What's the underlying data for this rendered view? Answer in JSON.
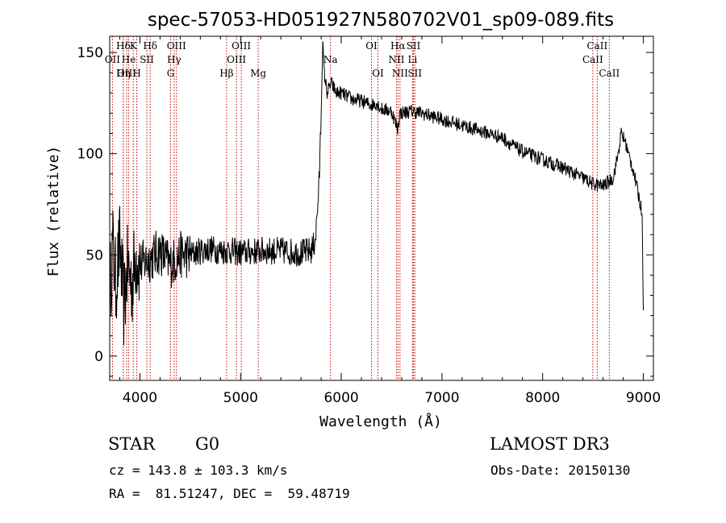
{
  "chart_data": {
    "type": "line",
    "title": "spec-57053-HD051927N580702V01_sp09-089.fits",
    "xlabel": "Wavelength (Å)",
    "ylabel": "Flux (relative)",
    "xlim": [
      3700,
      9100
    ],
    "ylim": [
      -12,
      158
    ],
    "xticks": [
      4000,
      5000,
      6000,
      7000,
      8000,
      9000
    ],
    "yticks": [
      0,
      50,
      100,
      150
    ],
    "grid": false,
    "line_color": "#000000",
    "marker_color": "#cc0000",
    "spectrum_anchors": [
      [
        3700,
        30
      ],
      [
        3730,
        55
      ],
      [
        3760,
        35
      ],
      [
        3800,
        55
      ],
      [
        3840,
        25
      ],
      [
        3880,
        45
      ],
      [
        3920,
        35
      ],
      [
        3960,
        50
      ],
      [
        4000,
        45
      ],
      [
        4100,
        48
      ],
      [
        4200,
        52
      ],
      [
        4300,
        45
      ],
      [
        4400,
        50
      ],
      [
        4500,
        50
      ],
      [
        4600,
        52
      ],
      [
        4700,
        53
      ],
      [
        4800,
        52
      ],
      [
        4900,
        52
      ],
      [
        5000,
        51
      ],
      [
        5200,
        52
      ],
      [
        5400,
        52
      ],
      [
        5600,
        51
      ],
      [
        5700,
        52
      ],
      [
        5730,
        55
      ],
      [
        5750,
        62
      ],
      [
        5780,
        85
      ],
      [
        5800,
        120
      ],
      [
        5815,
        155
      ],
      [
        5830,
        140
      ],
      [
        5860,
        130
      ],
      [
        5900,
        135
      ],
      [
        5950,
        130
      ],
      [
        6000,
        130
      ],
      [
        6100,
        127
      ],
      [
        6200,
        126
      ],
      [
        6300,
        124
      ],
      [
        6350,
        125
      ],
      [
        6400,
        122
      ],
      [
        6500,
        121
      ],
      [
        6560,
        112
      ],
      [
        6580,
        120
      ],
      [
        6700,
        121
      ],
      [
        6800,
        120
      ],
      [
        7000,
        117
      ],
      [
        7200,
        114
      ],
      [
        7400,
        111
      ],
      [
        7600,
        108
      ],
      [
        7700,
        104
      ],
      [
        7800,
        101
      ],
      [
        8000,
        97
      ],
      [
        8200,
        93
      ],
      [
        8400,
        88
      ],
      [
        8500,
        85
      ],
      [
        8600,
        84
      ],
      [
        8700,
        88
      ],
      [
        8750,
        100
      ],
      [
        8780,
        110
      ],
      [
        8820,
        106
      ],
      [
        8850,
        100
      ],
      [
        8900,
        92
      ],
      [
        8950,
        80
      ],
      [
        8990,
        70
      ],
      [
        9000,
        20
      ]
    ],
    "lines": [
      {
        "label": "Hδ",
        "x": 3835,
        "row": 0
      },
      {
        "label": "OII",
        "x": 3727,
        "row": 1
      },
      {
        "label": "OIII",
        "x": 3869,
        "row": 2
      },
      {
        "label": "He",
        "x": 3889,
        "row": 1
      },
      {
        "label": "Hη",
        "x": 3835,
        "row": 2
      },
      {
        "label": "K",
        "x": 3934,
        "row": 0
      },
      {
        "label": "SII",
        "x": 4069,
        "row": 1
      },
      {
        "label": "H",
        "x": 3969,
        "row": 2
      },
      {
        "label": "Hδ",
        "x": 4102,
        "row": 0
      },
      {
        "label": "OIII",
        "x": 4363,
        "row": 0
      },
      {
        "label": "Hγ",
        "x": 4340,
        "row": 1
      },
      {
        "label": "G",
        "x": 4305,
        "row": 2
      },
      {
        "label": "Hβ",
        "x": 4861,
        "row": 2
      },
      {
        "label": "OIII",
        "x": 5007,
        "row": 0
      },
      {
        "label": "OIII",
        "x": 4959,
        "row": 1
      },
      {
        "label": "Mg",
        "x": 5175,
        "row": 2
      },
      {
        "label": "Na",
        "x": 5893,
        "row": 1
      },
      {
        "label": "OI",
        "x": 6300,
        "row": 0
      },
      {
        "label": "OI",
        "x": 6364,
        "row": 2
      },
      {
        "label": "Hα",
        "x": 6563,
        "row": 0
      },
      {
        "label": "NII",
        "x": 6548,
        "row": 1
      },
      {
        "label": "NII",
        "x": 6583,
        "row": 2
      },
      {
        "label": "SII",
        "x": 6717,
        "row": 0
      },
      {
        "label": "Li",
        "x": 6708,
        "row": 1
      },
      {
        "label": "SII",
        "x": 6731,
        "row": 2
      },
      {
        "label": "CaII",
        "x": 8542,
        "row": 0
      },
      {
        "label": "CaII",
        "x": 8498,
        "row": 1
      },
      {
        "label": "CaII",
        "x": 8662,
        "row": 2
      }
    ]
  },
  "info": {
    "object_class": "STAR",
    "subclass": "G0",
    "survey": "LAMOST DR3",
    "redshift": "cz = 143.8 ± 103.3 km/s",
    "obs_date": "Obs-Date: 20150130",
    "coords": "RA =  81.51247, DEC =  59.48719"
  }
}
